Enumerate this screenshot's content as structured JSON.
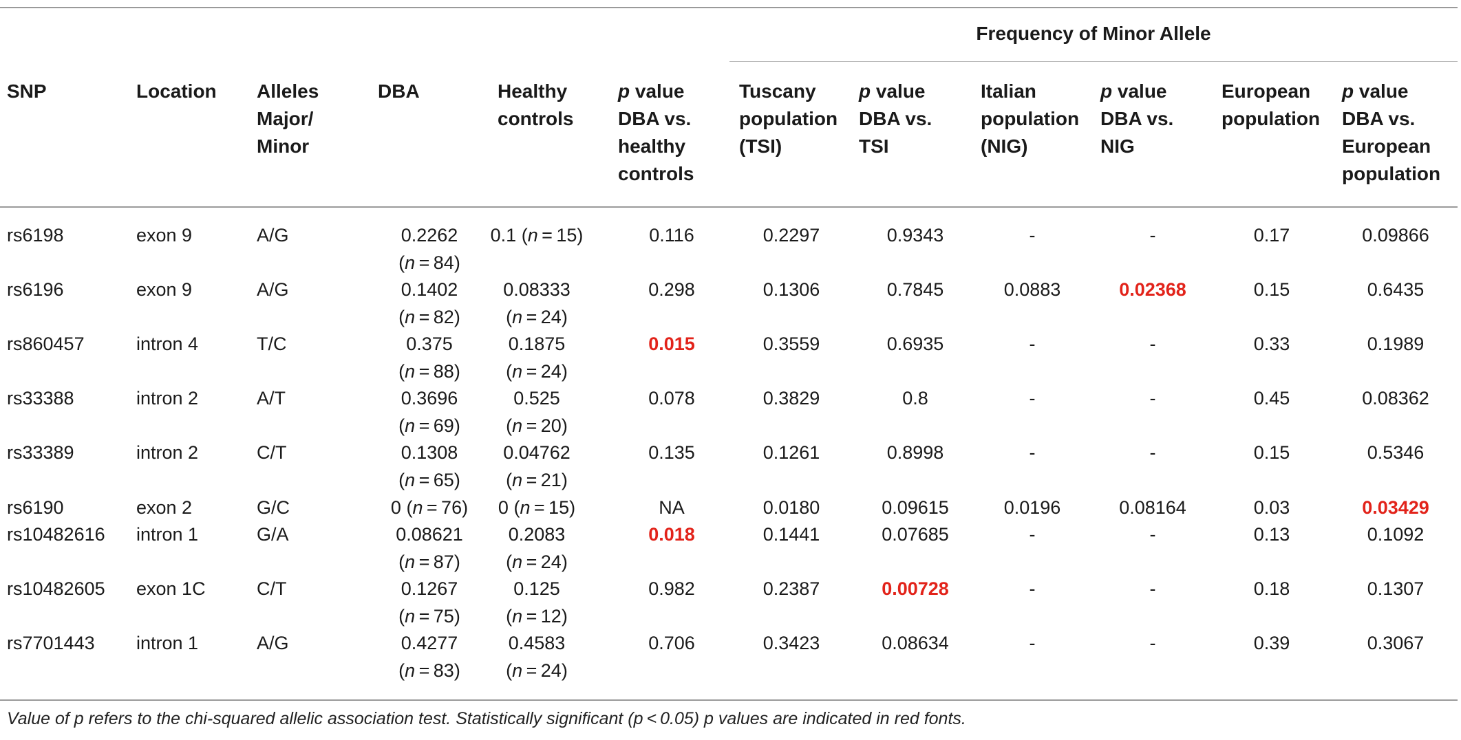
{
  "group_header": "Frequency of Minor Allele",
  "columns": [
    {
      "key": "snp",
      "lines": [
        "SNP"
      ]
    },
    {
      "key": "location",
      "lines": [
        "Location"
      ]
    },
    {
      "key": "alleles",
      "lines": [
        "Alleles",
        "Major/",
        "Minor"
      ]
    },
    {
      "key": "dba",
      "lines": [
        "DBA"
      ]
    },
    {
      "key": "healthy",
      "lines": [
        "Healthy",
        "controls"
      ]
    },
    {
      "key": "p_hc",
      "lines": [
        "p value",
        "DBA vs.",
        "healthy",
        "controls"
      ]
    },
    {
      "key": "tsi",
      "lines": [
        "Tuscany",
        "population",
        "(TSI)"
      ]
    },
    {
      "key": "p_tsi",
      "lines": [
        "p value",
        "DBA vs.",
        "TSI"
      ]
    },
    {
      "key": "nig",
      "lines": [
        "Italian",
        "population",
        "(NIG)"
      ]
    },
    {
      "key": "p_nig",
      "lines": [
        "p value",
        "DBA vs.",
        "NIG"
      ]
    },
    {
      "key": "eur",
      "lines": [
        "European",
        "population"
      ]
    },
    {
      "key": "p_eur",
      "lines": [
        "p value",
        "DBA vs.",
        "European",
        "population"
      ]
    }
  ],
  "rows": [
    {
      "snp": "rs6198",
      "location": "exon 9",
      "alleles": "A/G",
      "dba": {
        "value": "0.2262",
        "n": "84"
      },
      "healthy": {
        "value": "0.1",
        "n": "15",
        "inline": true
      },
      "p_hc": {
        "v": "0.116",
        "sig": false
      },
      "tsi": "0.2297",
      "p_tsi": {
        "v": "0.9343",
        "sig": false
      },
      "nig": "-",
      "p_nig": {
        "v": "-",
        "sig": false
      },
      "eur": "0.17",
      "p_eur": {
        "v": "0.09866",
        "sig": false
      }
    },
    {
      "snp": "rs6196",
      "location": "exon 9",
      "alleles": "A/G",
      "dba": {
        "value": "0.1402",
        "n": "82"
      },
      "healthy": {
        "value": "0.08333",
        "n": "24"
      },
      "p_hc": {
        "v": "0.298",
        "sig": false
      },
      "tsi": "0.1306",
      "p_tsi": {
        "v": "0.7845",
        "sig": false
      },
      "nig": "0.0883",
      "p_nig": {
        "v": "0.02368",
        "sig": true
      },
      "eur": "0.15",
      "p_eur": {
        "v": "0.6435",
        "sig": false
      }
    },
    {
      "snp": "rs860457",
      "location": "intron 4",
      "alleles": "T/C",
      "dba": {
        "value": "0.375",
        "n": "88"
      },
      "healthy": {
        "value": "0.1875",
        "n": "24"
      },
      "p_hc": {
        "v": "0.015",
        "sig": true
      },
      "tsi": "0.3559",
      "p_tsi": {
        "v": "0.6935",
        "sig": false
      },
      "nig": "-",
      "p_nig": {
        "v": "-",
        "sig": false
      },
      "eur": "0.33",
      "p_eur": {
        "v": "0.1989",
        "sig": false
      }
    },
    {
      "snp": "rs33388",
      "location": "intron 2",
      "alleles": "A/T",
      "dba": {
        "value": "0.3696",
        "n": "69"
      },
      "healthy": {
        "value": "0.525",
        "n": "20"
      },
      "p_hc": {
        "v": "0.078",
        "sig": false
      },
      "tsi": "0.3829",
      "p_tsi": {
        "v": "0.8",
        "sig": false
      },
      "nig": "-",
      "p_nig": {
        "v": "-",
        "sig": false
      },
      "eur": "0.45",
      "p_eur": {
        "v": "0.08362",
        "sig": false
      }
    },
    {
      "snp": "rs33389",
      "location": "intron 2",
      "alleles": "C/T",
      "dba": {
        "value": "0.1308",
        "n": "65"
      },
      "healthy": {
        "value": "0.04762",
        "n": "21"
      },
      "p_hc": {
        "v": "0.135",
        "sig": false
      },
      "tsi": "0.1261",
      "p_tsi": {
        "v": "0.8998",
        "sig": false
      },
      "nig": "-",
      "p_nig": {
        "v": "-",
        "sig": false
      },
      "eur": "0.15",
      "p_eur": {
        "v": "0.5346",
        "sig": false
      }
    },
    {
      "snp": "rs6190",
      "location": "exon 2",
      "alleles": "G/C",
      "dba": {
        "value": "0",
        "n": "76",
        "inline": true
      },
      "healthy": {
        "value": "0",
        "n": "15",
        "inline": true
      },
      "p_hc": {
        "v": "NA",
        "sig": false
      },
      "tsi": "0.0180",
      "p_tsi": {
        "v": "0.09615",
        "sig": false
      },
      "nig": "0.0196",
      "p_nig": {
        "v": "0.08164",
        "sig": false
      },
      "eur": "0.03",
      "p_eur": {
        "v": "0.03429",
        "sig": true
      }
    },
    {
      "snp": "rs10482616",
      "location": "intron 1",
      "alleles": "G/A",
      "dba": {
        "value": "0.08621",
        "n": "87"
      },
      "healthy": {
        "value": "0.2083",
        "n": "24"
      },
      "p_hc": {
        "v": "0.018",
        "sig": true
      },
      "tsi": "0.1441",
      "p_tsi": {
        "v": "0.07685",
        "sig": false
      },
      "nig": "-",
      "p_nig": {
        "v": "-",
        "sig": false
      },
      "eur": "0.13",
      "p_eur": {
        "v": "0.1092",
        "sig": false
      }
    },
    {
      "snp": "rs10482605",
      "location": "exon 1C",
      "alleles": "C/T",
      "dba": {
        "value": "0.1267",
        "n": "75"
      },
      "healthy": {
        "value": "0.125",
        "n": "12"
      },
      "p_hc": {
        "v": "0.982",
        "sig": false
      },
      "tsi": "0.2387",
      "p_tsi": {
        "v": "0.00728",
        "sig": true
      },
      "nig": "-",
      "p_nig": {
        "v": "-",
        "sig": false
      },
      "eur": "0.18",
      "p_eur": {
        "v": "0.1307",
        "sig": false
      }
    },
    {
      "snp": "rs7701443",
      "location": "intron 1",
      "alleles": "A/G",
      "dba": {
        "value": "0.4277",
        "n": "83"
      },
      "healthy": {
        "value": "0.4583",
        "n": "24"
      },
      "p_hc": {
        "v": "0.706",
        "sig": false
      },
      "tsi": "0.3423",
      "p_tsi": {
        "v": "0.08634",
        "sig": false
      },
      "nig": "-",
      "p_nig": {
        "v": "-",
        "sig": false
      },
      "eur": "0.39",
      "p_eur": {
        "v": "0.3067",
        "sig": false
      }
    }
  ],
  "footnote": "Value of p refers to the chi-squared allelic association test. Statistically significant (p < 0.05) p values are indicated in red fonts.",
  "colors": {
    "significant": "#e2231a",
    "text": "#1a1a1a",
    "rule": "#9a9a9a"
  }
}
